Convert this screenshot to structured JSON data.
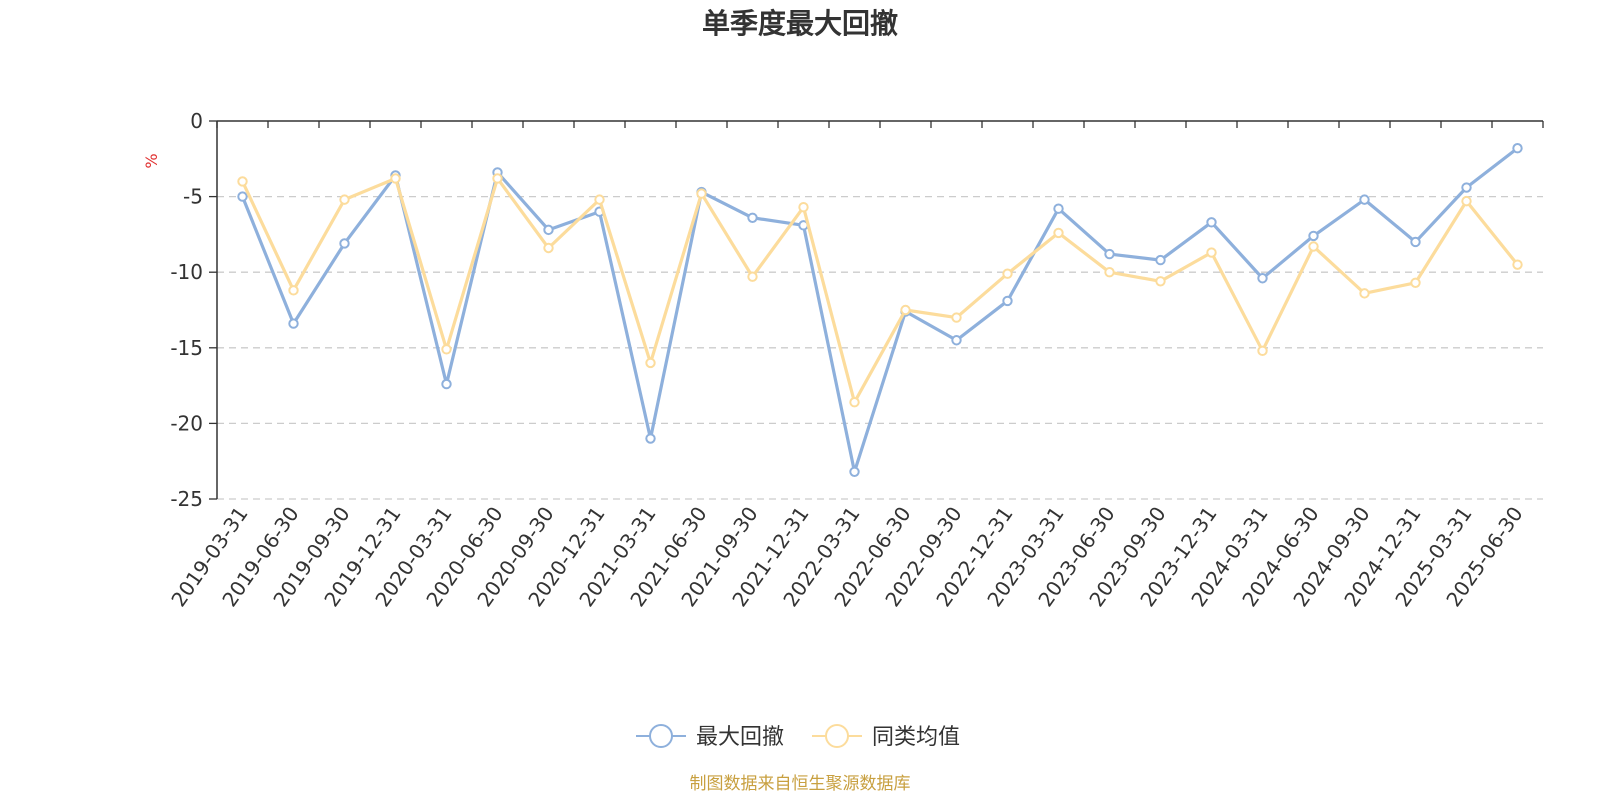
{
  "chart_data": {
    "type": "line",
    "title": "单季度最大回撤",
    "ylabel": "%",
    "ylim": [
      -25,
      0
    ],
    "yticks": [
      0,
      -5,
      -10,
      -15,
      -20,
      -25
    ],
    "grid": true,
    "legend_position": "bottom",
    "categories": [
      "2019-03-31",
      "2019-06-30",
      "2019-09-30",
      "2019-12-31",
      "2020-03-31",
      "2020-06-30",
      "2020-09-30",
      "2020-12-31",
      "2021-03-31",
      "2021-06-30",
      "2021-09-30",
      "2021-12-31",
      "2022-03-31",
      "2022-06-30",
      "2022-09-30",
      "2022-12-31",
      "2023-03-31",
      "2023-06-30",
      "2023-09-30",
      "2023-12-31",
      "2024-03-31",
      "2024-06-30",
      "2024-09-30",
      "2024-12-31",
      "2025-03-31",
      "2025-06-30"
    ],
    "series": [
      {
        "name": "最大回撤",
        "color": "#8eb0dc",
        "values": [
          -5.0,
          -13.4,
          -8.1,
          -3.6,
          -17.4,
          -3.4,
          -7.2,
          -6.0,
          -21.0,
          -4.7,
          -6.4,
          -6.9,
          -23.2,
          -12.6,
          -14.5,
          -11.9,
          -5.8,
          -8.8,
          -9.2,
          -6.7,
          -10.4,
          -7.6,
          -5.2,
          -8.0,
          -4.4,
          -1.8
        ]
      },
      {
        "name": "同类均值",
        "color": "#fcdc9c",
        "values": [
          -4.0,
          -11.2,
          -5.2,
          -3.8,
          -15.1,
          -3.8,
          -8.4,
          -5.2,
          -16.0,
          -4.8,
          -10.3,
          -5.7,
          -18.6,
          -12.5,
          -13.0,
          -10.1,
          -7.4,
          -10.0,
          -10.6,
          -8.7,
          -15.2,
          -8.3,
          -11.4,
          -10.7,
          -5.3,
          -9.5
        ]
      }
    ]
  },
  "footer": {
    "source_text": "制图数据来自恒生聚源数据库",
    "source_color": "#c8a040"
  },
  "colors": {
    "axis": "#333333",
    "grid": "#cccccc",
    "unit": "#e03030"
  }
}
